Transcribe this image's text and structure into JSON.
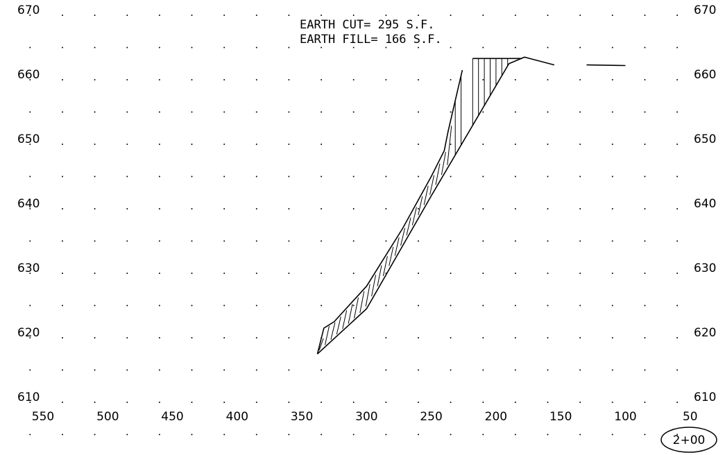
{
  "annotations": {
    "earth_cut": "EARTH  CUT=  295  S.F.",
    "earth_fill": "EARTH  FILL=  166  S.F."
  },
  "station_label": "2+00",
  "chart_data": {
    "type": "line",
    "x_axis": {
      "ticks": [
        550,
        500,
        450,
        400,
        350,
        300,
        250,
        200,
        150,
        100,
        50
      ],
      "labels": [
        "550",
        "500",
        "450",
        "400",
        "350",
        "300",
        "250",
        "200",
        "150",
        "100",
        "50"
      ],
      "range": [
        550,
        50
      ],
      "reversed": true
    },
    "y_axis": {
      "ticks": [
        610,
        620,
        630,
        640,
        650,
        660,
        670
      ],
      "labels": [
        "610",
        "620",
        "630",
        "640",
        "650",
        "660",
        "670"
      ],
      "range": [
        610,
        670
      ]
    },
    "grid": "dots",
    "series": [
      {
        "points": [
          [
            338,
            617.5
          ],
          [
            300,
            624.5
          ],
          [
            250,
            642
          ],
          [
            190,
            662.5
          ],
          [
            178,
            663.5
          ],
          [
            155,
            662.3
          ]
        ]
      },
      {
        "points": [
          [
            338,
            617.5
          ],
          [
            333,
            621.5
          ],
          [
            325,
            622.5
          ],
          [
            300,
            628
          ],
          [
            272,
            637
          ],
          [
            250,
            645
          ],
          [
            240,
            649
          ],
          [
            237,
            652
          ],
          [
            226,
            661.5
          ]
        ]
      },
      {
        "points": [
          [
            130,
            662.3
          ],
          [
            100,
            662.2
          ]
        ]
      }
    ],
    "earth_cut_sf": 295,
    "earth_fill_sf": 166
  }
}
